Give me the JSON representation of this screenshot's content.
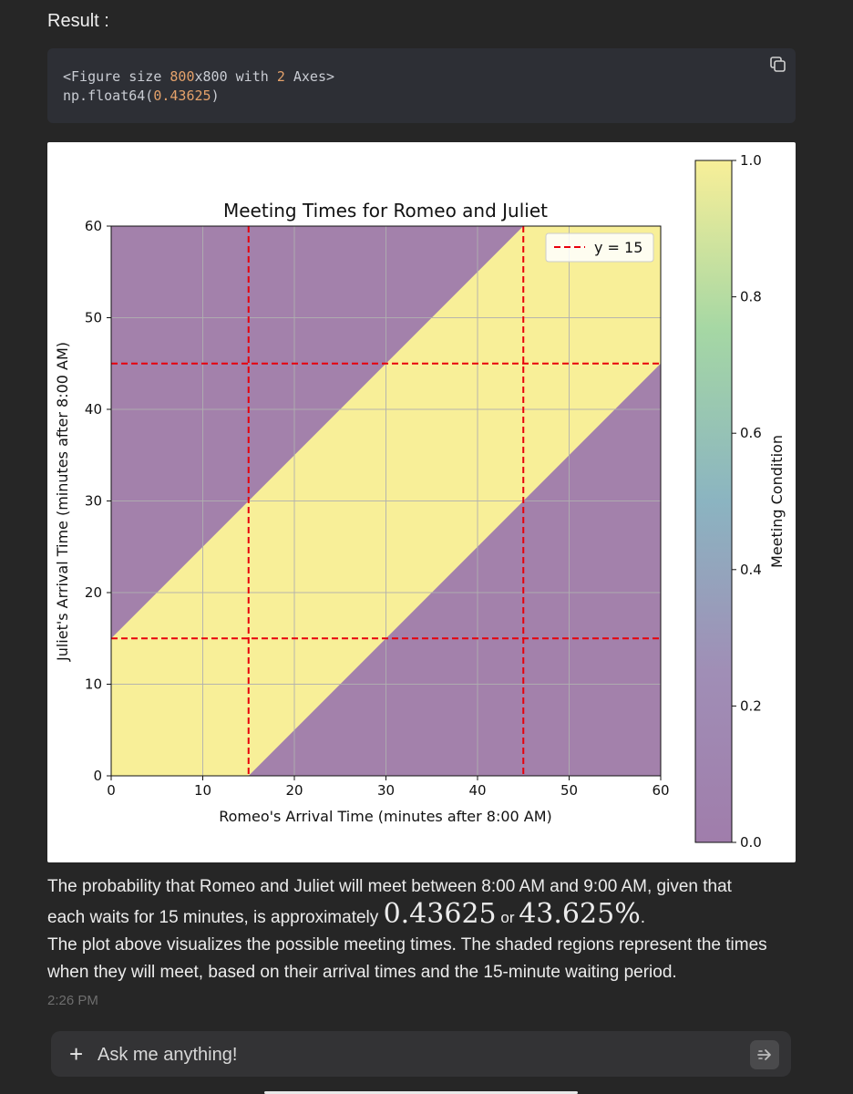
{
  "result_label": "Result :",
  "code": {
    "line1_prefix": "<Figure size ",
    "line1_num1": "800",
    "line1_mid": "x800 with ",
    "line1_num2": "2",
    "line1_suffix": " Axes>",
    "line2_prefix": "np.float64(",
    "line2_num": "0.43625",
    "line2_suffix": ")",
    "copy_icon": "copy-icon"
  },
  "chart_data": {
    "type": "heatmap",
    "title": "Meeting Times for Romeo and Juliet",
    "xlabel": "Romeo's Arrival Time (minutes after 8:00 AM)",
    "ylabel": "Juliet's Arrival Time (minutes after 8:00 AM)",
    "xlim": [
      0,
      60
    ],
    "ylim": [
      0,
      60
    ],
    "xticks": [
      "0",
      "10",
      "20",
      "30",
      "40",
      "50",
      "60"
    ],
    "yticks": [
      "0",
      "10",
      "20",
      "30",
      "40",
      "50",
      "60"
    ],
    "grid": true,
    "wait_minutes": 15,
    "meet_region": "|x - y| <= 15",
    "meet_value": 1,
    "no_meet_value": 0,
    "colors": {
      "meet": "#f8ef98",
      "no_meet": "#a381ab",
      "reference_lines": "#e8000b"
    },
    "reference_lines": {
      "vertical_x": [
        15,
        45
      ],
      "horizontal_y": [
        15,
        45
      ],
      "style": "dashed"
    },
    "legend": {
      "entries": [
        "y = 15"
      ],
      "placement": "top-right"
    },
    "colorbar": {
      "label": "Meeting Condition",
      "range": [
        0.0,
        1.0
      ],
      "ticks": [
        "0.0",
        "0.2",
        "0.4",
        "0.6",
        "0.8",
        "1.0"
      ],
      "colormap": "viridis",
      "alpha": 0.5
    }
  },
  "answer": {
    "line1": "The probability that Romeo and Juliet will meet between 8:00 AM and 9:00 AM, given that",
    "line2_pre": "each waits for 15 minutes, is approximately ",
    "value_decimal": "0.43625",
    "or_word": "or",
    "value_percent": "43.625%",
    "line2_end": ".",
    "para2": "The plot above visualizes the possible meeting times. The shaded regions represent the times when they will meet, based on their arrival times and the 15-minute waiting period."
  },
  "timestamp": "2:26 PM",
  "input": {
    "plus_label": "+",
    "placeholder": "Ask me anything!",
    "send_icon": "send-arrow-icon"
  }
}
